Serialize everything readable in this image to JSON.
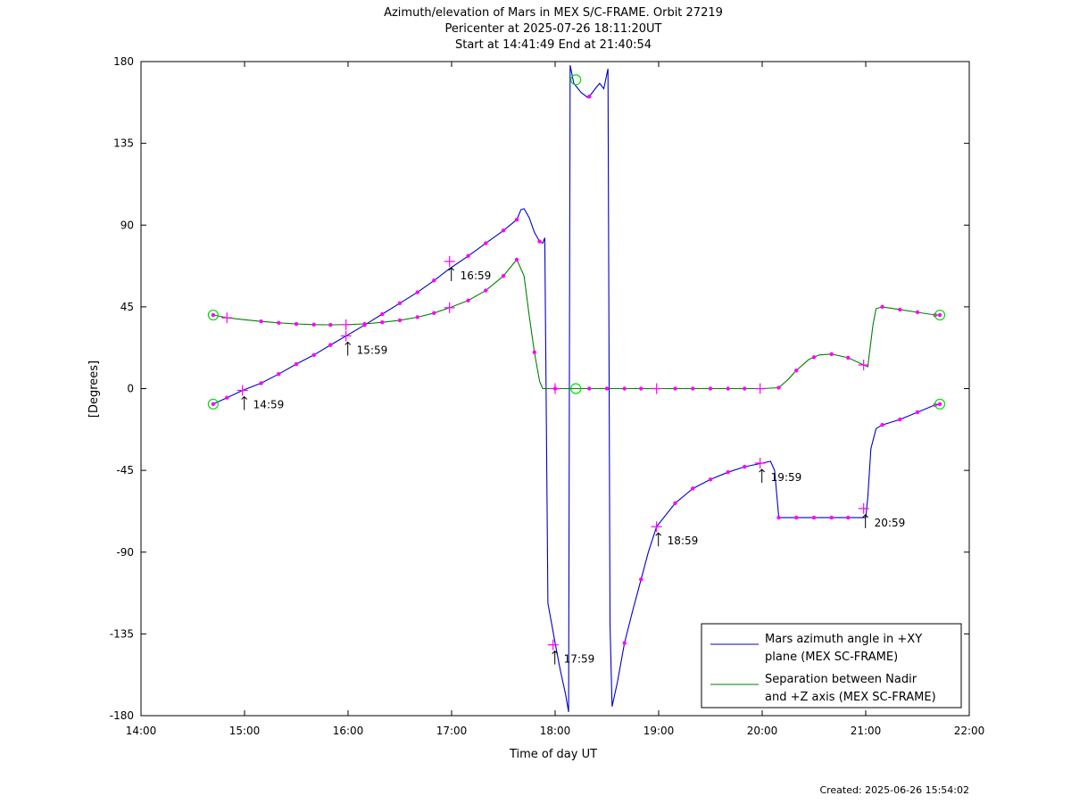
{
  "chart_data": {
    "type": "line",
    "title": "Azimuth/elevation of Mars in MEX S/C-FRAME.  Orbit 27219",
    "subtitle_1": "Pericenter at 2025-07-26 18:11:20UT",
    "subtitle_2": "Start at 14:41:49 End at 21:40:54",
    "xlabel": "Time of day UT",
    "ylabel": "[Degrees]",
    "xlim": [
      14,
      22
    ],
    "ylim": [
      -180,
      180
    ],
    "x_unit": "hours of day (UT)",
    "xticks": [
      14,
      15,
      16,
      17,
      18,
      19,
      20,
      21,
      22
    ],
    "xtick_labels": [
      "14:00",
      "15:00",
      "16:00",
      "17:00",
      "18:00",
      "19:00",
      "20:00",
      "21:00",
      "22:00"
    ],
    "yticks": [
      180,
      135,
      90,
      45,
      0,
      -45,
      -90,
      -135,
      -180
    ],
    "ytick_labels": [
      "180",
      "135",
      "90",
      "45",
      "0",
      "-45",
      "-90",
      "-135",
      "-180"
    ],
    "grid": false,
    "legend_position": "bottom-right",
    "series": [
      {
        "name": "Mars azimuth angle in +XY plane (MEX SC-FRAME)",
        "legend_line1": "Mars azimuth angle in +XY",
        "legend_line2": "plane (MEX SC-FRAME)",
        "color": "#0000cc",
        "points": [
          [
            14.697,
            -8.5
          ],
          [
            14.83,
            -5
          ],
          [
            14.98,
            -1
          ],
          [
            15.16,
            3
          ],
          [
            15.33,
            8
          ],
          [
            15.5,
            13.5
          ],
          [
            15.67,
            18.5
          ],
          [
            15.83,
            24
          ],
          [
            15.98,
            29
          ],
          [
            16.16,
            35
          ],
          [
            16.33,
            41
          ],
          [
            16.5,
            47
          ],
          [
            16.67,
            53
          ],
          [
            16.83,
            59.5
          ],
          [
            16.98,
            66
          ],
          [
            17.16,
            73
          ],
          [
            17.33,
            80
          ],
          [
            17.5,
            87
          ],
          [
            17.63,
            93
          ],
          [
            17.67,
            98.5
          ],
          [
            17.7,
            99
          ],
          [
            17.75,
            94
          ],
          [
            17.8,
            86
          ],
          [
            17.85,
            81
          ],
          [
            17.88,
            80
          ],
          [
            17.9,
            83
          ],
          [
            17.93,
            -118
          ],
          [
            18.0,
            -140
          ],
          [
            18.05,
            -155
          ],
          [
            18.1,
            -168
          ],
          [
            18.13,
            -178
          ],
          [
            18.145,
            178
          ],
          [
            18.18,
            168
          ],
          [
            18.25,
            163
          ],
          [
            18.32,
            160
          ],
          [
            18.4,
            166
          ],
          [
            18.43,
            168
          ],
          [
            18.47,
            165
          ],
          [
            18.51,
            176
          ],
          [
            18.53,
            -130
          ],
          [
            18.55,
            -175
          ],
          [
            18.6,
            -162
          ],
          [
            18.67,
            -140
          ],
          [
            18.75,
            -122
          ],
          [
            18.83,
            -105
          ],
          [
            18.9,
            -90
          ],
          [
            18.98,
            -76
          ],
          [
            19.16,
            -63
          ],
          [
            19.33,
            -55
          ],
          [
            19.5,
            -50
          ],
          [
            19.67,
            -46
          ],
          [
            19.83,
            -43
          ],
          [
            20.0,
            -41
          ],
          [
            20.08,
            -40
          ],
          [
            20.12,
            -45
          ],
          [
            20.16,
            -71
          ],
          [
            20.2,
            -71
          ],
          [
            20.33,
            -71
          ],
          [
            20.5,
            -71
          ],
          [
            20.67,
            -71
          ],
          [
            20.83,
            -71
          ],
          [
            21.0,
            -71
          ],
          [
            21.02,
            -60
          ],
          [
            21.05,
            -33
          ],
          [
            21.1,
            -22
          ],
          [
            21.16,
            -20
          ],
          [
            21.33,
            -17
          ],
          [
            21.5,
            -13
          ],
          [
            21.67,
            -9
          ],
          [
            21.716,
            -8.5
          ]
        ],
        "markers_x": [
          14.697,
          14.83,
          15.16,
          15.33,
          15.5,
          15.67,
          15.83,
          16.16,
          16.33,
          16.5,
          16.67,
          16.83,
          17.16,
          17.33,
          17.5,
          17.63,
          17.85,
          18.33,
          18.67,
          18.83,
          19.16,
          19.33,
          19.5,
          19.67,
          19.83,
          20.16,
          20.33,
          20.5,
          20.67,
          20.83,
          21.16,
          21.33,
          21.5,
          21.67,
          21.716
        ],
        "hour_marks": [
          {
            "x": 14.98,
            "y": -1,
            "label": "14:59"
          },
          {
            "x": 15.98,
            "y": 29,
            "label": "15:59"
          },
          {
            "x": 16.98,
            "y": 70,
            "label": "16:59"
          },
          {
            "x": 17.98,
            "y": -141,
            "label": "17:59"
          },
          {
            "x": 18.98,
            "y": -76,
            "label": "18:59"
          },
          {
            "x": 19.98,
            "y": -41,
            "label": "19:59"
          },
          {
            "x": 20.98,
            "y": -66,
            "label": "20:59"
          }
        ],
        "circles": [
          [
            14.697,
            -8.5
          ],
          [
            18.2,
            170
          ],
          [
            21.716,
            -8.5
          ]
        ]
      },
      {
        "name": "Separation between Nadir and +Z axis (MEX SC-FRAME)",
        "legend_line1": "Separation between Nadir",
        "legend_line2": "and +Z axis (MEX SC-FRAME)",
        "color": "#008000",
        "points": [
          [
            14.697,
            40.5
          ],
          [
            14.83,
            39
          ],
          [
            14.98,
            38
          ],
          [
            15.16,
            37
          ],
          [
            15.33,
            36.2
          ],
          [
            15.5,
            35.6
          ],
          [
            15.67,
            35.2
          ],
          [
            15.83,
            35.1
          ],
          [
            15.98,
            35.2
          ],
          [
            16.16,
            35.6
          ],
          [
            16.33,
            36.5
          ],
          [
            16.5,
            37.6
          ],
          [
            16.67,
            39.3
          ],
          [
            16.83,
            41.6
          ],
          [
            16.98,
            44.5
          ],
          [
            17.16,
            48.5
          ],
          [
            17.33,
            54
          ],
          [
            17.5,
            62
          ],
          [
            17.6,
            69
          ],
          [
            17.63,
            71
          ],
          [
            17.7,
            62
          ],
          [
            17.75,
            40
          ],
          [
            17.8,
            20
          ],
          [
            17.85,
            4
          ],
          [
            17.88,
            0
          ],
          [
            18.0,
            0
          ],
          [
            18.2,
            0
          ],
          [
            18.5,
            0
          ],
          [
            19.0,
            0
          ],
          [
            19.5,
            0
          ],
          [
            20.0,
            0
          ],
          [
            20.16,
            0.5
          ],
          [
            20.25,
            5
          ],
          [
            20.33,
            10
          ],
          [
            20.45,
            16
          ],
          [
            20.55,
            18.5
          ],
          [
            20.67,
            19
          ],
          [
            20.83,
            17
          ],
          [
            20.98,
            13
          ],
          [
            21.02,
            12
          ],
          [
            21.07,
            35
          ],
          [
            21.1,
            44
          ],
          [
            21.16,
            45
          ],
          [
            21.33,
            43.5
          ],
          [
            21.5,
            42
          ],
          [
            21.67,
            40.5
          ],
          [
            21.716,
            40.5
          ]
        ],
        "markers_x": [
          14.697,
          15.16,
          15.33,
          15.5,
          15.67,
          15.83,
          16.16,
          16.33,
          16.5,
          16.67,
          16.83,
          17.16,
          17.33,
          17.5,
          17.63,
          17.8,
          18.0,
          18.33,
          18.5,
          18.67,
          18.83,
          19.16,
          19.33,
          19.5,
          19.67,
          19.83,
          20.16,
          20.33,
          20.5,
          20.67,
          20.83,
          21.16,
          21.33,
          21.5,
          21.67,
          21.716
        ],
        "plus_x": [
          14.83,
          15.98,
          16.98,
          18.0,
          18.98,
          19.98,
          20.98
        ],
        "circles": [
          [
            14.697,
            40.5
          ],
          [
            18.2,
            0
          ],
          [
            21.716,
            40.5
          ]
        ]
      }
    ],
    "marker_color": "#ff00ff",
    "circle_color": "#00dd00"
  },
  "footer": {
    "created": "Created: 2025-06-26 15:54:02"
  }
}
